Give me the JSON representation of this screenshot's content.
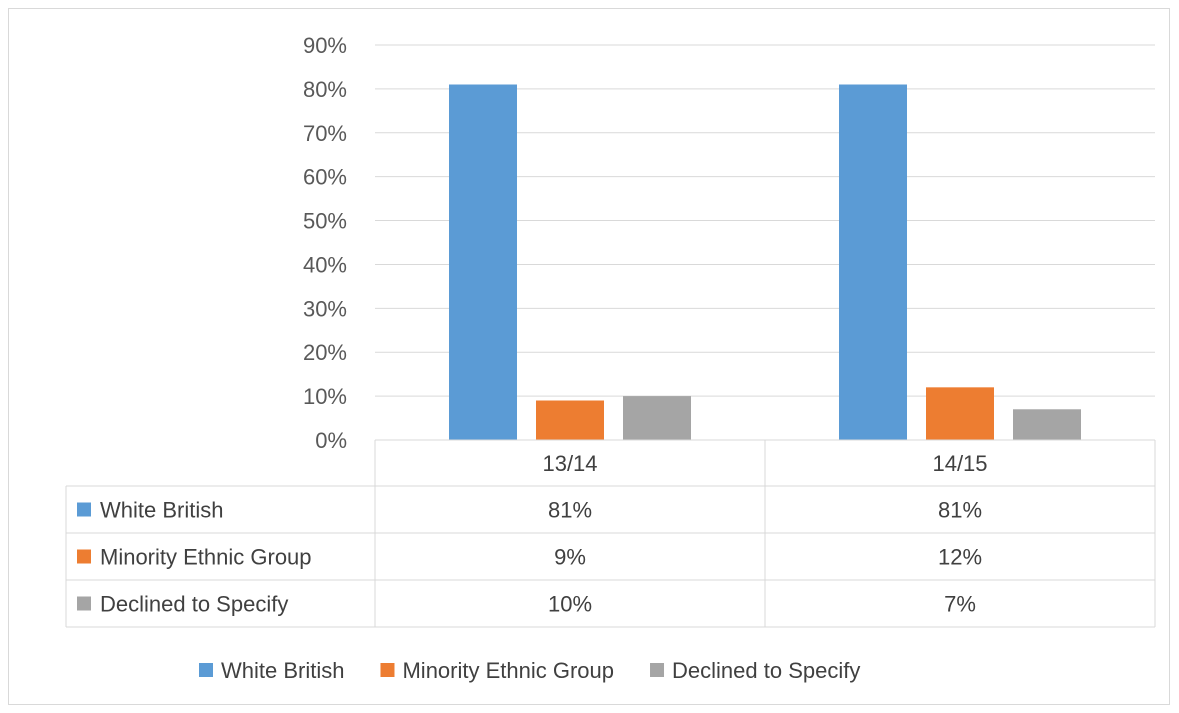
{
  "chart_data": {
    "type": "bar",
    "title": "",
    "xlabel": "",
    "ylabel": "",
    "categories": [
      "13/14",
      "14/15"
    ],
    "ylim": [
      0,
      90
    ],
    "yticks": [
      0,
      10,
      20,
      30,
      40,
      50,
      60,
      70,
      80,
      90
    ],
    "ytick_labels": [
      "0%",
      "10%",
      "20%",
      "30%",
      "40%",
      "50%",
      "60%",
      "70%",
      "80%",
      "90%"
    ],
    "grid": true,
    "legend_position": "bottom",
    "data_table": true,
    "series": [
      {
        "name": "White British",
        "values": [
          81,
          81
        ],
        "labels": [
          "81%",
          "81%"
        ],
        "color": "#5B9BD5"
      },
      {
        "name": "Minority Ethnic Group",
        "values": [
          9,
          12
        ],
        "labels": [
          "9%",
          "12%"
        ],
        "color": "#ED7D31"
      },
      {
        "name": "Declined to Specify",
        "values": [
          10,
          7
        ],
        "labels": [
          "10%",
          "7%"
        ],
        "color": "#A5A5A5"
      }
    ]
  }
}
